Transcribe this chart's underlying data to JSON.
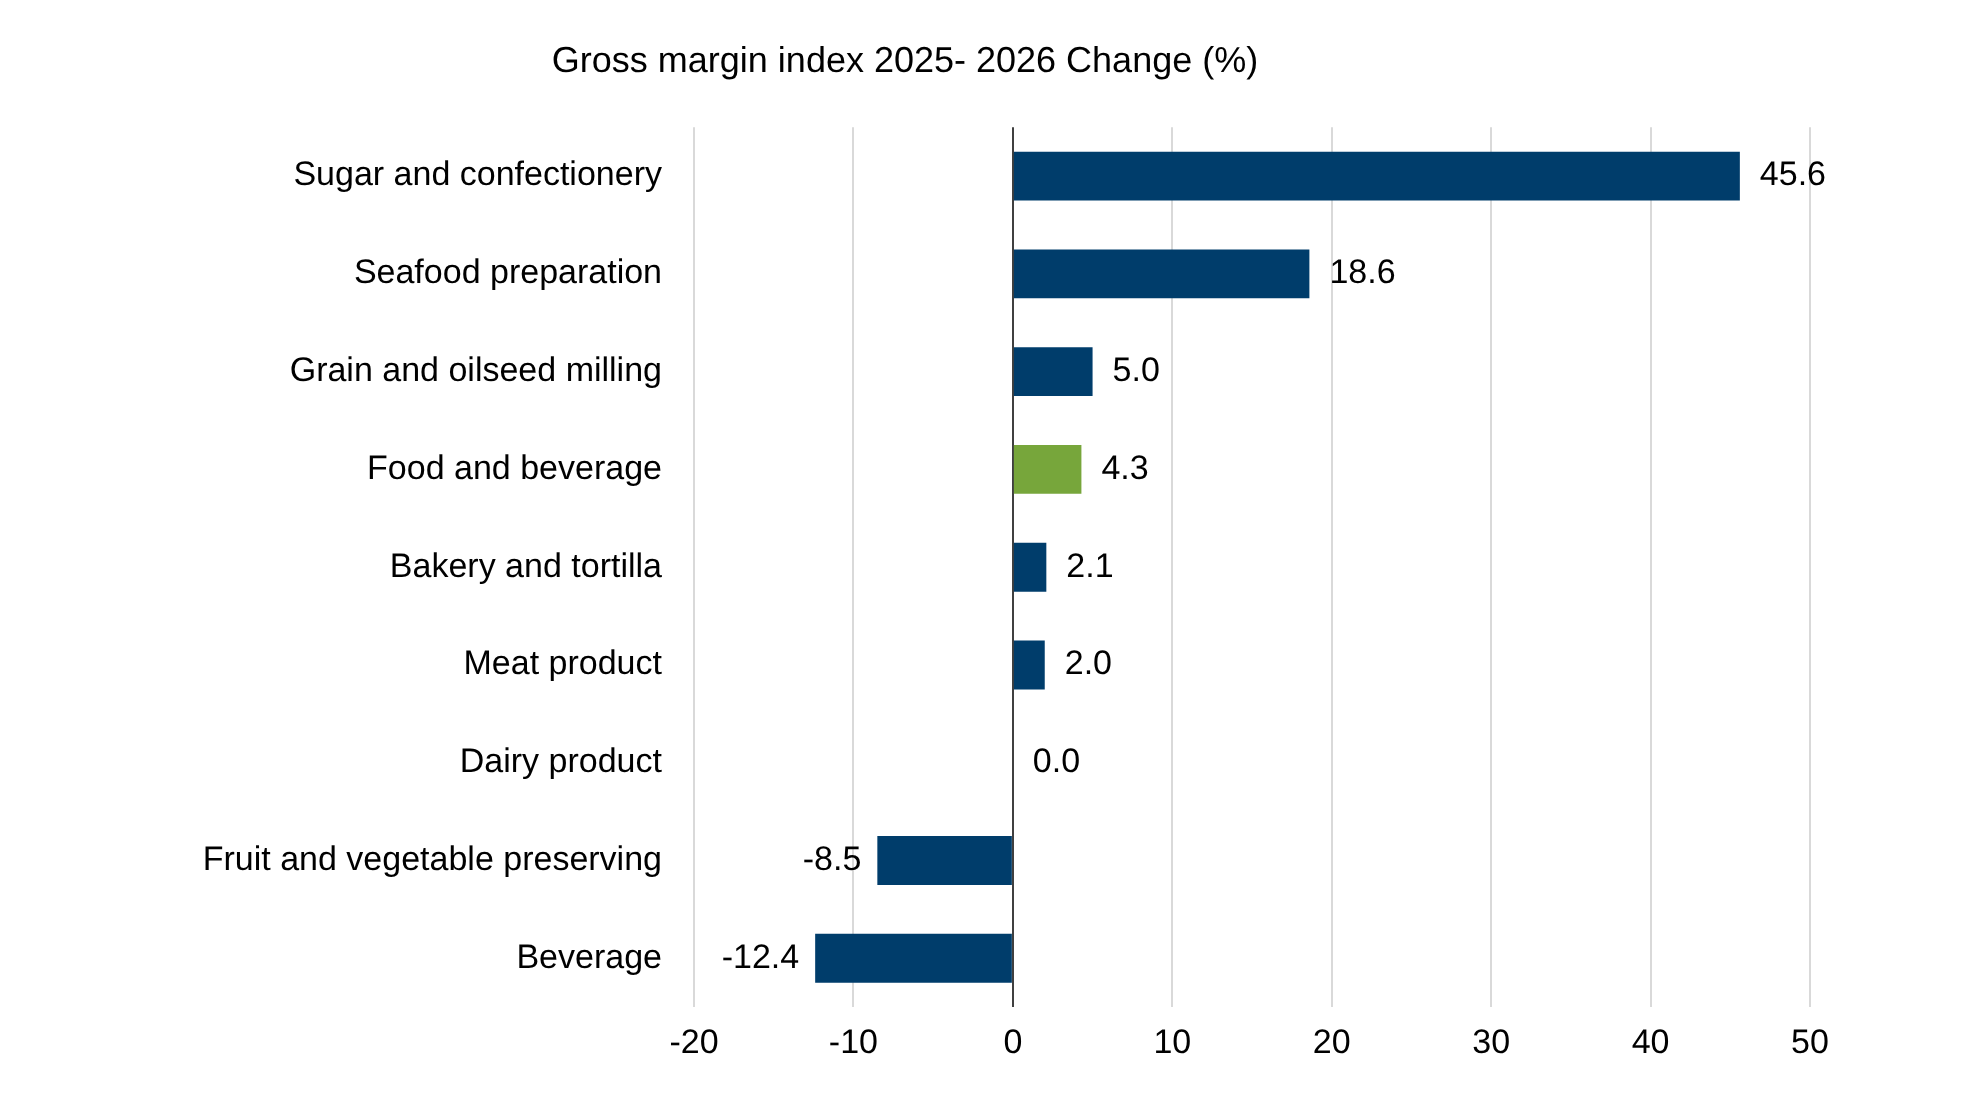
{
  "chart_data": {
    "type": "bar",
    "orientation": "horizontal",
    "title": "Gross margin index 2025- 2026 Change (%)",
    "categories": [
      "Sugar and confectionery",
      "Seafood preparation",
      "Grain and oilseed milling",
      "Food and beverage",
      "Bakery and tortilla",
      "Meat product",
      "Dairy product",
      "Fruit and vegetable preserving",
      "Beverage"
    ],
    "values": [
      45.6,
      18.6,
      5.0,
      4.3,
      2.1,
      2.0,
      0.0,
      -8.5,
      -12.4
    ],
    "value_labels": [
      "45.6",
      "18.6",
      "5.0",
      "4.3",
      "2.1",
      "2.0",
      "0.0",
      "-8.5",
      "-12.4"
    ],
    "colors": [
      "#003d6b",
      "#003d6b",
      "#003d6b",
      "#77a63b",
      "#003d6b",
      "#003d6b",
      "#003d6b",
      "#003d6b",
      "#003d6b"
    ],
    "xlim": [
      -20,
      50
    ],
    "xticks": [
      -20,
      -10,
      0,
      10,
      20,
      30,
      40,
      50
    ],
    "grid": "x",
    "legend": false
  }
}
